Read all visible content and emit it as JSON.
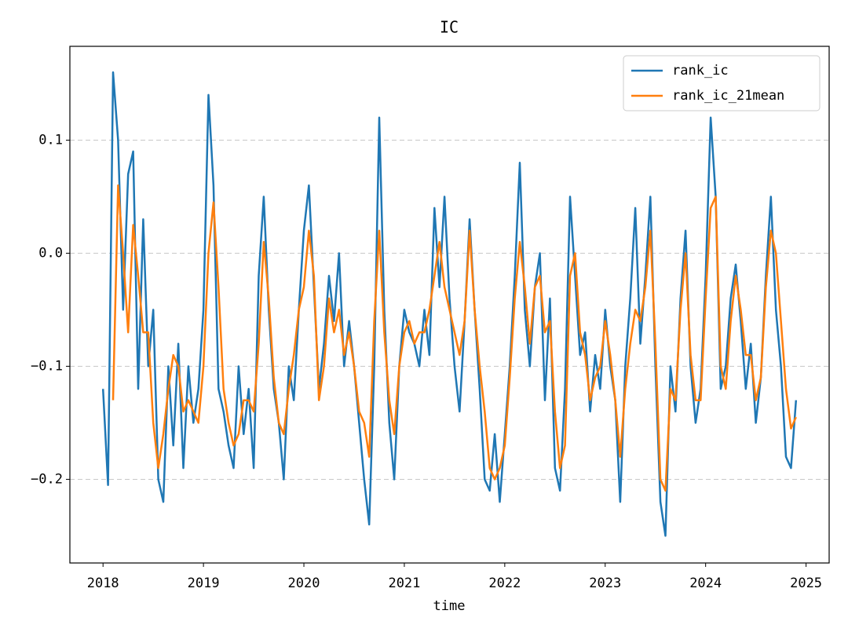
{
  "chart_data": {
    "type": "line",
    "title": "IC",
    "x_label": "time",
    "x": [
      2018.0,
      2018.05,
      2018.1,
      2018.15,
      2018.2,
      2018.25,
      2018.3,
      2018.35,
      2018.4,
      2018.45,
      2018.5,
      2018.55,
      2018.6,
      2018.65,
      2018.7,
      2018.75,
      2018.8,
      2018.85,
      2018.9,
      2018.95,
      2019.0,
      2019.05,
      2019.1,
      2019.15,
      2019.2,
      2019.25,
      2019.3,
      2019.35,
      2019.4,
      2019.45,
      2019.5,
      2019.55,
      2019.6,
      2019.65,
      2019.7,
      2019.75,
      2019.8,
      2019.85,
      2019.9,
      2019.95,
      2020.0,
      2020.05,
      2020.1,
      2020.15,
      2020.2,
      2020.25,
      2020.3,
      2020.35,
      2020.4,
      2020.45,
      2020.5,
      2020.55,
      2020.6,
      2020.65,
      2020.7,
      2020.75,
      2020.8,
      2020.85,
      2020.9,
      2020.95,
      2021.0,
      2021.05,
      2021.1,
      2021.15,
      2021.2,
      2021.25,
      2021.3,
      2021.35,
      2021.4,
      2021.45,
      2021.5,
      2021.55,
      2021.6,
      2021.65,
      2021.7,
      2021.75,
      2021.8,
      2021.85,
      2021.9,
      2021.95,
      2022.0,
      2022.05,
      2022.1,
      2022.15,
      2022.2,
      2022.25,
      2022.3,
      2022.35,
      2022.4,
      2022.45,
      2022.5,
      2022.55,
      2022.6,
      2022.65,
      2022.7,
      2022.75,
      2022.8,
      2022.85,
      2022.9,
      2022.95,
      2023.0,
      2023.05,
      2023.1,
      2023.15,
      2023.2,
      2023.25,
      2023.3,
      2023.35,
      2023.4,
      2023.45,
      2023.5,
      2023.55,
      2023.6,
      2023.65,
      2023.7,
      2023.75,
      2023.8,
      2023.85,
      2023.9,
      2023.95,
      2024.0,
      2024.05,
      2024.1,
      2024.15,
      2024.2,
      2024.25,
      2024.3,
      2024.35,
      2024.4,
      2024.45,
      2024.5,
      2024.55,
      2024.6,
      2024.65,
      2024.7,
      2024.75,
      2024.8,
      2024.85,
      2024.9
    ],
    "series": [
      {
        "name": "rank_ic",
        "color": "#1f77b4",
        "values": [
          -0.12,
          -0.205,
          0.16,
          0.1,
          -0.05,
          0.07,
          0.09,
          -0.12,
          0.03,
          -0.1,
          -0.05,
          -0.2,
          -0.22,
          -0.1,
          -0.17,
          -0.08,
          -0.19,
          -0.1,
          -0.15,
          -0.12,
          -0.05,
          0.14,
          0.06,
          -0.12,
          -0.14,
          -0.17,
          -0.19,
          -0.1,
          -0.16,
          -0.12,
          -0.19,
          -0.02,
          0.05,
          -0.05,
          -0.12,
          -0.15,
          -0.2,
          -0.1,
          -0.13,
          -0.05,
          0.02,
          0.06,
          -0.03,
          -0.12,
          -0.08,
          -0.02,
          -0.06,
          0,
          -0.1,
          -0.06,
          -0.1,
          -0.15,
          -0.2,
          -0.24,
          -0.1,
          0.12,
          -0.05,
          -0.15,
          -0.2,
          -0.1,
          -0.05,
          -0.07,
          -0.08,
          -0.1,
          -0.05,
          -0.09,
          0.04,
          -0.03,
          0.05,
          -0.04,
          -0.1,
          -0.14,
          -0.06,
          0.03,
          -0.05,
          -0.12,
          -0.2,
          -0.21,
          -0.16,
          -0.22,
          -0.16,
          -0.1,
          -0.02,
          0.08,
          -0.05,
          -0.1,
          -0.03,
          0,
          -0.13,
          -0.04,
          -0.19,
          -0.21,
          -0.12,
          0.05,
          -0.02,
          -0.09,
          -0.07,
          -0.14,
          -0.09,
          -0.12,
          -0.05,
          -0.1,
          -0.13,
          -0.22,
          -0.1,
          -0.04,
          0.04,
          -0.08,
          -0.02,
          0.05,
          -0.1,
          -0.22,
          -0.25,
          -0.1,
          -0.14,
          -0.04,
          0.02,
          -0.1,
          -0.15,
          -0.12,
          -0.02,
          0.12,
          0.05,
          -0.12,
          -0.1,
          -0.04,
          -0.01,
          -0.06,
          -0.12,
          -0.08,
          -0.15,
          -0.11,
          -0.02,
          0.05,
          -0.05,
          -0.1,
          -0.18,
          -0.19,
          -0.13
        ]
      },
      {
        "name": "rank_ic_21mean",
        "color": "#ff7f0e",
        "values": [
          null,
          null,
          -0.13,
          0.06,
          0,
          -0.07,
          0.025,
          -0.02,
          -0.07,
          -0.07,
          -0.15,
          -0.19,
          -0.16,
          -0.12,
          -0.09,
          -0.1,
          -0.14,
          -0.13,
          -0.14,
          -0.15,
          -0.1,
          0.0,
          0.045,
          -0.03,
          -0.12,
          -0.15,
          -0.17,
          -0.16,
          -0.13,
          -0.13,
          -0.14,
          -0.08,
          0.01,
          -0.04,
          -0.11,
          -0.15,
          -0.16,
          -0.12,
          -0.09,
          -0.05,
          -0.03,
          0.02,
          -0.02,
          -0.13,
          -0.1,
          -0.04,
          -0.07,
          -0.05,
          -0.09,
          -0.07,
          -0.1,
          -0.14,
          -0.15,
          -0.18,
          -0.06,
          0.02,
          -0.07,
          -0.13,
          -0.16,
          -0.1,
          -0.07,
          -0.06,
          -0.08,
          -0.07,
          -0.07,
          -0.05,
          -0.02,
          0.01,
          -0.03,
          -0.05,
          -0.07,
          -0.09,
          -0.06,
          0.02,
          -0.05,
          -0.1,
          -0.14,
          -0.19,
          -0.2,
          -0.19,
          -0.17,
          -0.11,
          -0.04,
          0.01,
          -0.03,
          -0.08,
          -0.03,
          -0.02,
          -0.07,
          -0.06,
          -0.14,
          -0.19,
          -0.17,
          -0.02,
          0,
          -0.07,
          -0.09,
          -0.13,
          -0.11,
          -0.1,
          -0.06,
          -0.09,
          -0.13,
          -0.18,
          -0.12,
          -0.08,
          -0.05,
          -0.06,
          -0.03,
          0.02,
          -0.08,
          -0.2,
          -0.21,
          -0.12,
          -0.13,
          -0.05,
          0,
          -0.09,
          -0.13,
          -0.13,
          -0.04,
          0.04,
          0.05,
          -0.1,
          -0.12,
          -0.06,
          -0.02,
          -0.05,
          -0.09,
          -0.09,
          -0.13,
          -0.11,
          -0.03,
          0.02,
          0,
          -0.06,
          -0.12,
          -0.155,
          -0.145
        ]
      }
    ],
    "xlim": [
      2017.67,
      2025.23
    ],
    "xticks": [
      2018,
      2019,
      2020,
      2021,
      2022,
      2023,
      2024,
      2025
    ],
    "ylim": [
      -0.274,
      0.183
    ],
    "yticks": [
      {
        "value": -0.2,
        "label": "−0.2"
      },
      {
        "value": -0.1,
        "label": "−0.1"
      },
      {
        "value": 0,
        "label": "0.0"
      },
      0.1
    ],
    "grid": true,
    "legend": "upper right"
  }
}
